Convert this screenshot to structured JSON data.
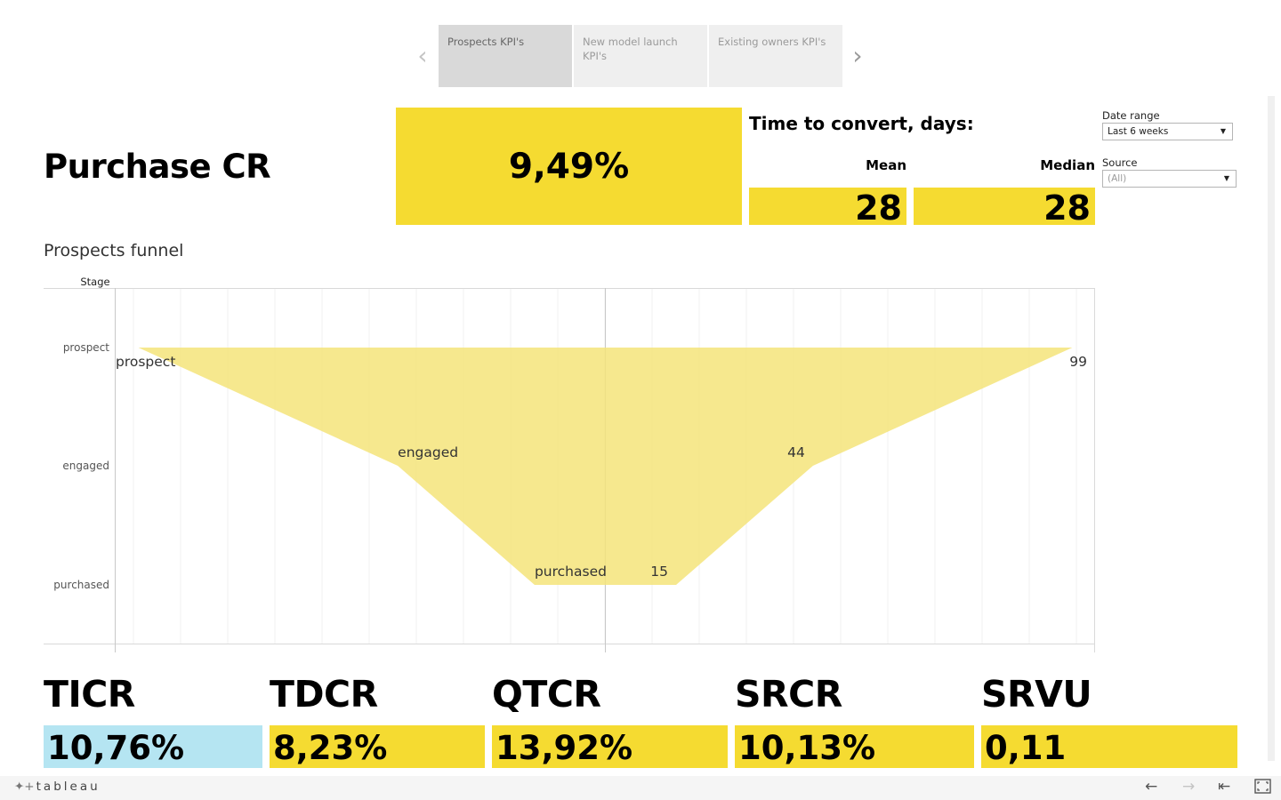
{
  "tabs": [
    {
      "label": "Prospects KPI's",
      "active": true
    },
    {
      "label": "New model launch KPI's",
      "active": false
    },
    {
      "label": "Existing owners KPI's",
      "active": false
    }
  ],
  "header": {
    "title": "Purchase CR",
    "purchase_cr_value": "9,49%",
    "ttc_title": "Time to convert, days:",
    "mean_label": "Mean",
    "median_label": "Median",
    "mean_value": "28",
    "median_value": "28"
  },
  "filters": {
    "date_range_label": "Date range",
    "date_range_value": "Last 6 weeks",
    "source_label": "Source",
    "source_value": "(All)"
  },
  "funnel": {
    "title": "Prospects funnel",
    "axis_title": "Stage",
    "stages": [
      {
        "name": "prospect",
        "value": 99
      },
      {
        "name": "engaged",
        "value": 44
      },
      {
        "name": "purchased",
        "value": 15
      }
    ]
  },
  "chart_data": {
    "type": "area",
    "title": "Prospects funnel",
    "ylabel": "Stage",
    "categories": [
      "prospect",
      "engaged",
      "purchased"
    ],
    "series": [
      {
        "values": [
          99,
          44,
          15
        ]
      }
    ],
    "xlim": [
      -104,
      104
    ],
    "grid": true,
    "color": "#f5e47a"
  },
  "kpis": [
    {
      "label": "TICR",
      "value": "10,76%",
      "highlight": "blue"
    },
    {
      "label": "TDCR",
      "value": "8,23%",
      "highlight": "yellow"
    },
    {
      "label": "QTCR",
      "value": "13,92%",
      "highlight": "yellow"
    },
    {
      "label": "SRCR",
      "value": "10,13%",
      "highlight": "yellow"
    },
    {
      "label": "SRVU",
      "value": "0,11",
      "highlight": "yellow"
    }
  ],
  "footer": {
    "logo_text": "tableau"
  },
  "colors": {
    "accent_yellow": "#f5db31",
    "accent_blue": "#b5e5f2",
    "funnel_fill": "#f5e47a"
  }
}
